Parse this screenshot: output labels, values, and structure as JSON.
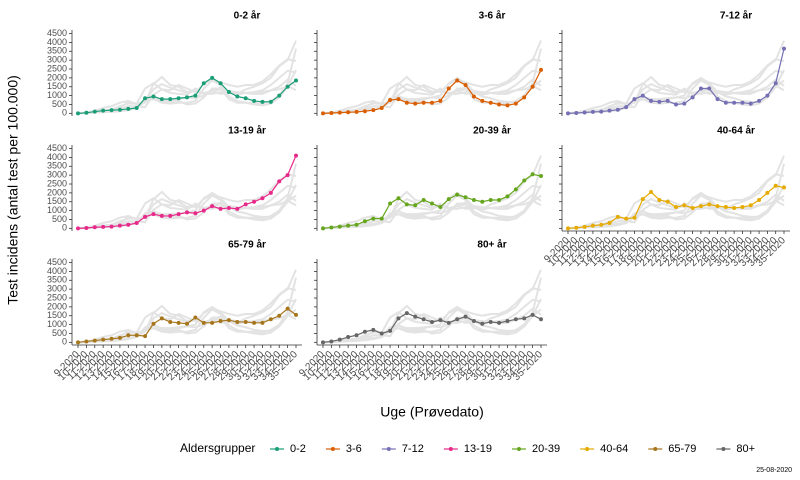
{
  "chart_data": {
    "type": "line",
    "y_label": "Test incidens (antal test per 100.000)",
    "x_label": "Uge (Prøvedato)",
    "legend_title": "Aldersgrupper",
    "note": "25-08-2020",
    "x": [
      "9-2020",
      "10-2020",
      "11-2020",
      "12-2020",
      "13-2020",
      "14-2020",
      "15-2020",
      "16-2020",
      "17-2020",
      "18-2020",
      "19-2020",
      "20-2020",
      "21-2020",
      "22-2020",
      "23-2020",
      "24-2020",
      "25-2020",
      "26-2020",
      "27-2020",
      "28-2020",
      "29-2020",
      "30-2020",
      "31-2020",
      "32-2020",
      "33-2020",
      "34-2020",
      "35-2020"
    ],
    "ylim": [
      -150,
      4700
    ],
    "yticks": [
      0,
      500,
      1000,
      1500,
      2000,
      2500,
      3000,
      3500,
      4000,
      4500
    ],
    "series": [
      {
        "name": "0-2",
        "title": "0-2 år",
        "color": "#1b9e77",
        "values": [
          0,
          30,
          100,
          150,
          180,
          200,
          250,
          300,
          850,
          950,
          800,
          800,
          850,
          900,
          1000,
          1700,
          2000,
          1700,
          1200,
          950,
          850,
          700,
          650,
          650,
          1000,
          1500,
          1850
        ]
      },
      {
        "name": "3-6",
        "title": "3-6 år",
        "color": "#d95f02",
        "values": [
          0,
          20,
          40,
          60,
          80,
          120,
          180,
          300,
          750,
          800,
          600,
          550,
          600,
          600,
          700,
          1400,
          1850,
          1600,
          950,
          700,
          600,
          500,
          450,
          550,
          900,
          1500,
          2450
        ]
      },
      {
        "name": "7-12",
        "title": "7-12 år",
        "color": "#7570b3",
        "values": [
          0,
          20,
          50,
          80,
          100,
          150,
          200,
          350,
          800,
          1000,
          700,
          650,
          700,
          500,
          550,
          900,
          1400,
          1400,
          800,
          600,
          600,
          600,
          550,
          700,
          1000,
          1700,
          3650
        ]
      },
      {
        "name": "13-19",
        "title": "13-19 år",
        "color": "#e7298a",
        "values": [
          0,
          20,
          60,
          80,
          100,
          150,
          200,
          300,
          650,
          800,
          700,
          700,
          800,
          900,
          850,
          1000,
          1250,
          1100,
          1150,
          1100,
          1350,
          1500,
          1700,
          2000,
          2650,
          3000,
          4100
        ]
      },
      {
        "name": "20-39",
        "title": "20-39 år",
        "color": "#66a61e",
        "values": [
          0,
          50,
          100,
          150,
          200,
          400,
          550,
          550,
          1400,
          1700,
          1350,
          1300,
          1600,
          1400,
          1200,
          1650,
          1900,
          1750,
          1600,
          1500,
          1600,
          1600,
          1800,
          2200,
          2700,
          3050,
          2950
        ]
      },
      {
        "name": "40-64",
        "title": "40-64 år",
        "color": "#e6ab02",
        "values": [
          0,
          30,
          80,
          150,
          200,
          300,
          650,
          550,
          600,
          1650,
          2050,
          1600,
          1500,
          1200,
          1300,
          1150,
          1250,
          1350,
          1250,
          1200,
          1150,
          1200,
          1300,
          1600,
          2000,
          2400,
          2300
        ]
      },
      {
        "name": "65-79",
        "title": "65-79 år",
        "color": "#a6761d",
        "values": [
          0,
          50,
          100,
          150,
          200,
          250,
          400,
          400,
          350,
          1050,
          1350,
          1150,
          1100,
          1050,
          1400,
          1100,
          1100,
          1200,
          1250,
          1150,
          1150,
          1100,
          1100,
          1300,
          1500,
          1900,
          1550
        ]
      },
      {
        "name": "80+",
        "title": "80+ år",
        "color": "#666666",
        "values": [
          0,
          50,
          150,
          300,
          400,
          600,
          700,
          500,
          650,
          1350,
          1650,
          1450,
          1300,
          1150,
          1250,
          1100,
          1300,
          1450,
          1200,
          1050,
          1150,
          1100,
          1200,
          1300,
          1350,
          1550,
          1300
        ]
      }
    ]
  }
}
